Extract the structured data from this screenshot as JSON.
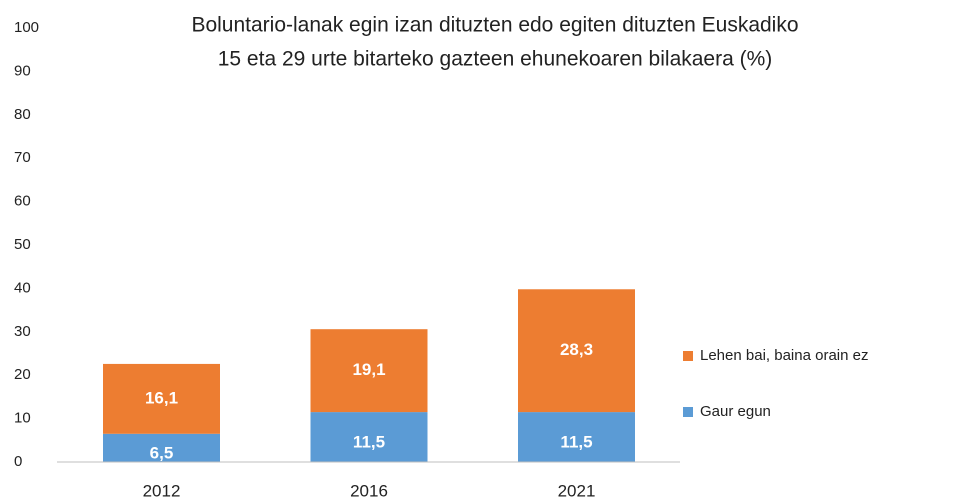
{
  "chart_data": {
    "type": "stacked_bar",
    "title": [
      "Boluntario-lanak egin izan dituzten edo egiten dituzten Euskadiko",
      "15 eta 29 urte bitarteko gazteen ehunekoaren bilakaera  (%)"
    ],
    "categories": [
      "2012",
      "2016",
      "2021"
    ],
    "series": [
      {
        "name": "Gaur egun",
        "color": "#5b9bd5",
        "values": [
          6.5,
          11.5,
          11.5
        ],
        "value_labels": [
          "6,5",
          "11,5",
          "11,5"
        ]
      },
      {
        "name": "Lehen bai, baina orain ez",
        "color": "#ed7d31",
        "values": [
          16.1,
          19.1,
          28.3
        ],
        "value_labels": [
          "16,1",
          "19,1",
          "28,3"
        ]
      }
    ],
    "ylim": [
      0,
      100
    ],
    "yticks": [
      0,
      10,
      20,
      30,
      40,
      50,
      60,
      70,
      80,
      90,
      100
    ],
    "grid": false,
    "legend": "right"
  }
}
